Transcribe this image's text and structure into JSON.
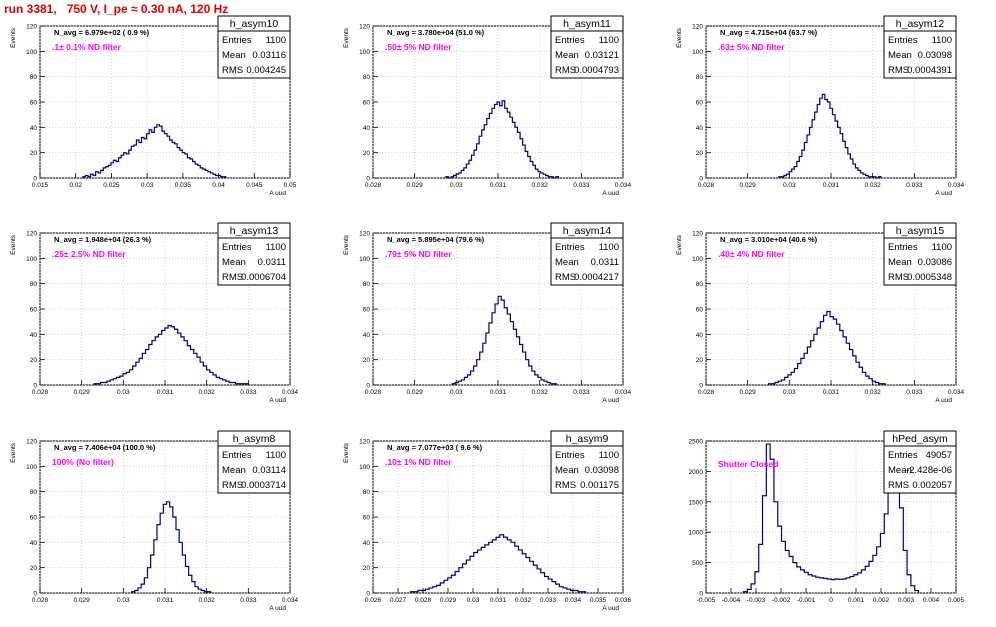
{
  "header": {
    "run_title": "run 3381,   750 V, I_pe ≈ 0.30 nA, 120 Hz"
  },
  "colors": {
    "hist": "#000080",
    "annotation": "#ff00ff",
    "title_red": "#e00000",
    "text": "#000000"
  },
  "chart_data": [
    {
      "type": "histogram",
      "name": "h_asym10",
      "stats": {
        "entries_label": "Entries",
        "entries": "1100",
        "mean_label": "Mean",
        "mean": "0.03116",
        "rms_label": "RMS",
        "rms": "0.004245"
      },
      "navg": "N_avg = 6.979e+02 ( 0.9 %)",
      "annotation": ".1± 0.1% ND filter",
      "ylabel": "Events",
      "xlabel": "A uud",
      "xlim": [
        0.015,
        0.05
      ],
      "ylim": [
        0,
        120
      ],
      "xticks": [
        0.015,
        0.02,
        0.025,
        0.03,
        0.035,
        0.04,
        0.045,
        0.05
      ],
      "xtick_labels": [
        "0.015",
        "0.02",
        "0.025",
        "0.03",
        "0.035",
        "0.04",
        "0.045",
        "0.05"
      ],
      "yticks": [
        0,
        20,
        40,
        60,
        80,
        100,
        120
      ],
      "ytick_labels": [
        "0",
        "20",
        "40",
        "60",
        "80",
        "100",
        "120"
      ],
      "bins": [
        0.021,
        0.041
      ],
      "values": [
        1,
        2,
        1,
        3,
        2,
        5,
        4,
        6,
        8,
        9,
        10,
        12,
        14,
        13,
        16,
        18,
        20,
        19,
        22,
        25,
        26,
        30,
        28,
        32,
        31,
        35,
        38,
        36,
        40,
        42,
        41,
        37,
        35,
        33,
        30,
        28,
        27,
        24,
        22,
        20,
        19,
        16,
        15,
        13,
        11,
        10,
        8,
        7,
        6,
        5,
        4,
        3,
        2,
        2,
        1,
        1
      ]
    },
    {
      "type": "histogram",
      "name": "h_asym11",
      "stats": {
        "entries_label": "Entries",
        "entries": "1100",
        "mean_label": "Mean",
        "mean": "0.03121",
        "rms_label": "RMS",
        "rms": "0.0004793"
      },
      "navg": "N_avg = 3.780e+04 (51.0 %)",
      "annotation": ".50± 5% ND filter",
      "ylabel": "Events",
      "xlabel": "A uud",
      "xlim": [
        0.028,
        0.034
      ],
      "ylim": [
        0,
        120
      ],
      "xticks": [
        0.028,
        0.029,
        0.03,
        0.031,
        0.032,
        0.033,
        0.034
      ],
      "xtick_labels": [
        "0.028",
        "0.029",
        "0.03",
        "0.031",
        "0.032",
        "0.033",
        "0.034"
      ],
      "yticks": [
        0,
        20,
        40,
        60,
        80,
        100,
        120
      ],
      "ytick_labels": [
        "0",
        "20",
        "40",
        "60",
        "80",
        "100",
        "120"
      ],
      "bins": [
        0.02975,
        0.03245
      ],
      "values": [
        1,
        0,
        1,
        2,
        3,
        4,
        6,
        8,
        11,
        14,
        18,
        22,
        27,
        33,
        38,
        42,
        47,
        51,
        55,
        58,
        60,
        57,
        61,
        55,
        52,
        48,
        44,
        40,
        36,
        31,
        26,
        21,
        17,
        13,
        10,
        7,
        5,
        4,
        3,
        2,
        1,
        1,
        0,
        1
      ]
    },
    {
      "type": "histogram",
      "name": "h_asym12",
      "stats": {
        "entries_label": "Entries",
        "entries": "1100",
        "mean_label": "Mean",
        "mean": "0.03098",
        "rms_label": "RMS",
        "rms": "0.0004391"
      },
      "navg": "N_avg = 4.715e+04 (63.7 %)",
      "annotation": ".63± 5% ND filter",
      "ylabel": "Events",
      "xlabel": "A uud",
      "xlim": [
        0.028,
        0.034
      ],
      "ylim": [
        0,
        120
      ],
      "xticks": [
        0.028,
        0.029,
        0.03,
        0.031,
        0.032,
        0.033,
        0.034
      ],
      "xtick_labels": [
        "0.028",
        "0.029",
        "0.03",
        "0.031",
        "0.032",
        "0.033",
        "0.034"
      ],
      "yticks": [
        0,
        20,
        40,
        60,
        80,
        100,
        120
      ],
      "ytick_labels": [
        "0",
        "20",
        "40",
        "60",
        "80",
        "100",
        "120"
      ],
      "bins": [
        0.02975,
        0.0322
      ],
      "values": [
        1,
        1,
        2,
        3,
        5,
        7,
        9,
        13,
        17,
        22,
        28,
        34,
        40,
        46,
        52,
        58,
        63,
        66,
        62,
        60,
        55,
        50,
        45,
        40,
        35,
        29,
        24,
        19,
        15,
        11,
        8,
        6,
        4,
        3,
        2,
        1,
        1,
        1,
        0,
        1
      ]
    },
    {
      "type": "histogram",
      "name": "h_asym13",
      "stats": {
        "entries_label": "Entries",
        "entries": "1100",
        "mean_label": "Mean",
        "mean": "0.0311",
        "rms_label": "RMS",
        "rms": "0.0006704"
      },
      "navg": "N_avg = 1.948e+04 (26.3 %)",
      "annotation": ".25± 2.5% ND filter",
      "ylabel": "Events",
      "xlabel": "A uud",
      "xlim": [
        0.028,
        0.034
      ],
      "ylim": [
        0,
        120
      ],
      "xticks": [
        0.028,
        0.029,
        0.03,
        0.031,
        0.032,
        0.033,
        0.034
      ],
      "xtick_labels": [
        "0.028",
        "0.029",
        "0.03",
        "0.031",
        "0.032",
        "0.033",
        "0.034"
      ],
      "yticks": [
        0,
        20,
        40,
        60,
        80,
        100,
        120
      ],
      "ytick_labels": [
        "0",
        "20",
        "40",
        "60",
        "80",
        "100",
        "120"
      ],
      "bins": [
        0.0293,
        0.033
      ],
      "values": [
        1,
        1,
        2,
        2,
        3,
        4,
        5,
        6,
        7,
        9,
        10,
        12,
        15,
        18,
        21,
        25,
        28,
        32,
        35,
        38,
        40,
        43,
        45,
        47,
        46,
        44,
        41,
        38,
        35,
        31,
        28,
        25,
        22,
        18,
        15,
        12,
        10,
        8,
        6,
        5,
        4,
        3,
        2,
        2,
        1,
        1,
        1,
        1
      ]
    },
    {
      "type": "histogram",
      "name": "h_asym14",
      "stats": {
        "entries_label": "Entries",
        "entries": "1100",
        "mean_label": "Mean",
        "mean": "0.0311",
        "rms_label": "RMS",
        "rms": "0.0004217"
      },
      "navg": "N_avg = 5.895e+04 (79.6 %)",
      "annotation": ".79± 5% ND filter",
      "ylabel": "Events",
      "xlabel": "A uud",
      "xlim": [
        0.028,
        0.034
      ],
      "ylim": [
        0,
        120
      ],
      "xticks": [
        0.028,
        0.029,
        0.03,
        0.031,
        0.032,
        0.033,
        0.034
      ],
      "xtick_labels": [
        "0.028",
        "0.029",
        "0.03",
        "0.031",
        "0.032",
        "0.033",
        "0.034"
      ],
      "yticks": [
        0,
        20,
        40,
        60,
        80,
        100,
        120
      ],
      "ytick_labels": [
        "0",
        "20",
        "40",
        "60",
        "80",
        "100",
        "120"
      ],
      "bins": [
        0.0299,
        0.0324
      ],
      "values": [
        1,
        2,
        3,
        4,
        6,
        8,
        11,
        15,
        20,
        26,
        33,
        41,
        49,
        57,
        64,
        70,
        67,
        61,
        56,
        50,
        44,
        38,
        32,
        26,
        20,
        15,
        11,
        8,
        6,
        4,
        3,
        2,
        1,
        1
      ]
    },
    {
      "type": "histogram",
      "name": "h_asym15",
      "stats": {
        "entries_label": "Entries",
        "entries": "1100",
        "mean_label": "Mean",
        "mean": "0.03086",
        "rms_label": "RMS",
        "rms": "0.0005348"
      },
      "navg": "N_avg = 3.010e+04 (40.6 %)",
      "annotation": ".40± 4% ND filter",
      "ylabel": "Events",
      "xlabel": "A uud",
      "xlim": [
        0.028,
        0.034
      ],
      "ylim": [
        0,
        120
      ],
      "xticks": [
        0.028,
        0.029,
        0.03,
        0.031,
        0.032,
        0.033,
        0.034
      ],
      "xtick_labels": [
        "0.028",
        "0.029",
        "0.03",
        "0.031",
        "0.032",
        "0.033",
        "0.034"
      ],
      "yticks": [
        0,
        20,
        40,
        60,
        80,
        100,
        120
      ],
      "ytick_labels": [
        "0",
        "20",
        "40",
        "60",
        "80",
        "100",
        "120"
      ],
      "bins": [
        0.0295,
        0.0323
      ],
      "values": [
        1,
        1,
        2,
        3,
        4,
        6,
        8,
        10,
        13,
        17,
        21,
        25,
        30,
        35,
        40,
        45,
        50,
        55,
        58,
        54,
        52,
        48,
        43,
        38,
        33,
        28,
        23,
        18,
        14,
        10,
        7,
        5,
        3,
        2,
        1,
        1
      ]
    },
    {
      "type": "histogram",
      "name": "h_asym8",
      "stats": {
        "entries_label": "Entries",
        "entries": "1100",
        "mean_label": "Mean",
        "mean": "0.03114",
        "rms_label": "RMS",
        "rms": "0.0003714"
      },
      "navg": "N_avg = 7.406e+04 (100.0 %)",
      "annotation": "100% (No filter)",
      "ylabel": "Events",
      "xlabel": "A uud",
      "xlim": [
        0.028,
        0.034
      ],
      "ylim": [
        0,
        120
      ],
      "xticks": [
        0.028,
        0.029,
        0.03,
        0.031,
        0.032,
        0.033,
        0.034
      ],
      "xtick_labels": [
        "0.028",
        "0.029",
        "0.03",
        "0.031",
        "0.032",
        "0.033",
        "0.034"
      ],
      "yticks": [
        0,
        20,
        40,
        60,
        80,
        100,
        120
      ],
      "ytick_labels": [
        "0",
        "20",
        "40",
        "60",
        "80",
        "100",
        "120"
      ],
      "bins": [
        0.0302,
        0.0321
      ],
      "values": [
        1,
        2,
        4,
        7,
        12,
        20,
        30,
        42,
        54,
        63,
        70,
        72,
        68,
        60,
        50,
        40,
        30,
        21,
        14,
        9,
        5,
        3,
        2,
        1,
        1
      ]
    },
    {
      "type": "histogram",
      "name": "h_asym9",
      "stats": {
        "entries_label": "Entries",
        "entries": "1100",
        "mean_label": "Mean",
        "mean": "0.03098",
        "rms_label": "RMS",
        "rms": "0.001175"
      },
      "navg": "N_avg = 7.077e+03 ( 9.6 %)",
      "annotation": ".10± 1% ND filter",
      "ylabel": "Events",
      "xlabel": "A uud",
      "xlim": [
        0.026,
        0.036
      ],
      "ylim": [
        0,
        120
      ],
      "xticks": [
        0.026,
        0.027,
        0.028,
        0.029,
        0.03,
        0.031,
        0.032,
        0.033,
        0.034,
        0.035,
        0.036
      ],
      "xtick_labels": [
        "0.026",
        "0.027",
        "0.028",
        "0.029",
        "0.03",
        "0.031",
        "0.032",
        "0.033",
        "0.034",
        "0.035",
        "0.036"
      ],
      "yticks": [
        0,
        20,
        40,
        60,
        80,
        100,
        120
      ],
      "ytick_labels": [
        "0",
        "20",
        "40",
        "60",
        "80",
        "100",
        "120"
      ],
      "bins": [
        0.0275,
        0.0345
      ],
      "values": [
        1,
        1,
        2,
        2,
        3,
        4,
        5,
        6,
        8,
        10,
        12,
        14,
        17,
        20,
        23,
        26,
        29,
        32,
        34,
        36,
        38,
        40,
        42,
        44,
        46,
        44,
        42,
        40,
        37,
        34,
        31,
        28,
        25,
        22,
        19,
        16,
        13,
        11,
        9,
        7,
        5,
        4,
        3,
        2,
        2,
        1,
        1
      ]
    },
    {
      "type": "histogram",
      "name": "hPed_asym",
      "stats": {
        "entries_label": "Entries",
        "entries": "49057",
        "mean_label": "Mean",
        "mean": "-2.428e-06",
        "rms_label": "RMS",
        "rms": "0.002057"
      },
      "annotation": "Shutter Closed",
      "ylabel": "",
      "xlabel": "",
      "xlim": [
        -0.005,
        0.005
      ],
      "ylim": [
        0,
        2500
      ],
      "xticks": [
        -0.005,
        -0.004,
        -0.003,
        -0.002,
        -0.001,
        0,
        0.001,
        0.002,
        0.003,
        0.004,
        0.005
      ],
      "xtick_labels": [
        "-0.005",
        "-0.004",
        "-0.003",
        "-0.002",
        "-0.001",
        "0",
        "0.001",
        "0.002",
        "0.003",
        "0.004",
        "0.005"
      ],
      "yticks": [
        0,
        500,
        1000,
        1500,
        2000,
        2500
      ],
      "ytick_labels": [
        "0",
        "500",
        "1000",
        "1500",
        "2000",
        "2500"
      ],
      "bins": [
        -0.0035,
        0.0035
      ],
      "values": [
        20,
        60,
        150,
        350,
        800,
        1600,
        2450,
        2200,
        1500,
        1100,
        850,
        700,
        600,
        500,
        430,
        380,
        340,
        300,
        280,
        260,
        250,
        240,
        230,
        220,
        230,
        225,
        230,
        250,
        270,
        300,
        330,
        380,
        440,
        520,
        620,
        760,
        980,
        1300,
        1800,
        2300,
        2150,
        1400,
        700,
        300,
        120,
        40
      ]
    }
  ]
}
